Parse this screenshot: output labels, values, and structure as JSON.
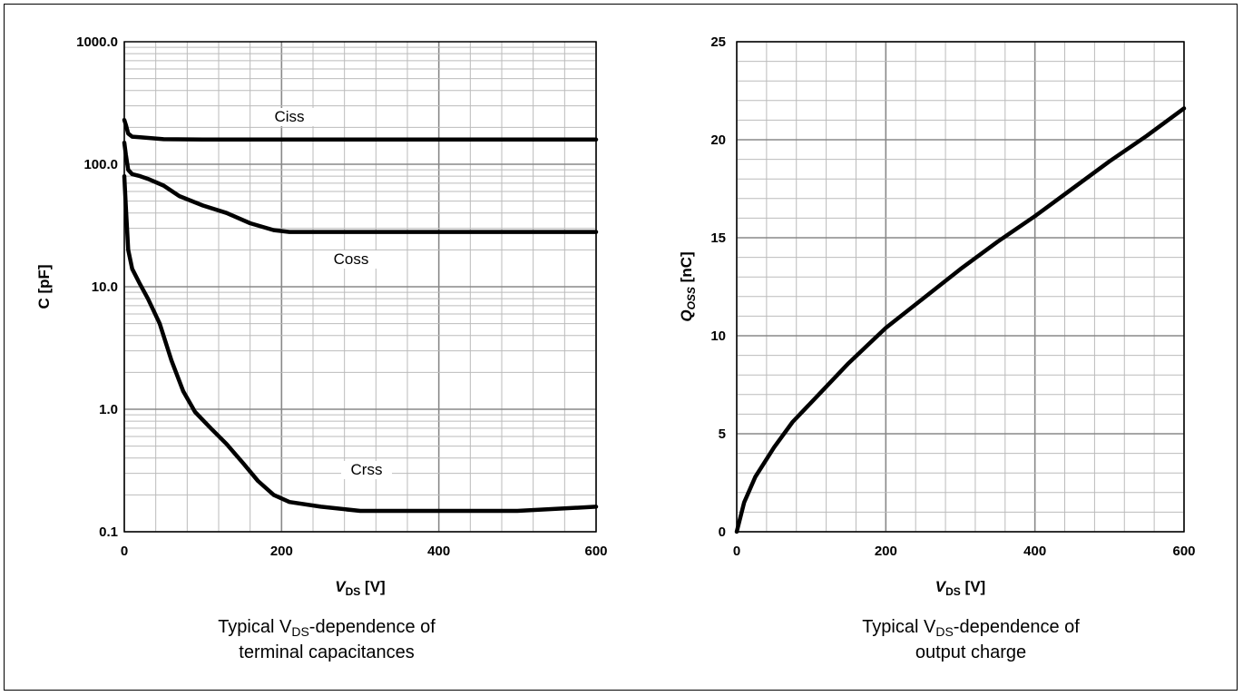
{
  "captions": {
    "left": {
      "prefix": "Typical V",
      "sub": "DS",
      "suffix": "-dependence of",
      "line2": "terminal capacitances"
    },
    "right": {
      "prefix": "Typical V",
      "sub": "DS",
      "suffix": "-dependence of",
      "line2": "output charge"
    }
  },
  "chart_data": [
    {
      "type": "line",
      "title": "",
      "xlabel": {
        "main": "V",
        "sub": "DS",
        "unit": " [V]"
      },
      "ylabel": "C [pF]",
      "xlim": [
        0,
        600
      ],
      "ylim": [
        0.1,
        1000
      ],
      "yscale": "log",
      "grid": true,
      "xticks": [
        0,
        200,
        400,
        600
      ],
      "xtick_labels": [
        "0",
        "200",
        "400",
        "600"
      ],
      "yticks": [
        0.1,
        1,
        10,
        100,
        1000
      ],
      "ytick_labels": [
        "0.1",
        "1.0",
        "10.0",
        "100.0",
        "1000.0"
      ],
      "series": [
        {
          "name": "Ciss",
          "x": [
            0,
            2,
            5,
            10,
            20,
            50,
            100,
            200,
            300,
            400,
            500,
            600
          ],
          "y": [
            230,
            210,
            178,
            168,
            166,
            160,
            159,
            159,
            159,
            159,
            159,
            159
          ]
        },
        {
          "name": "Coss",
          "x": [
            0,
            2,
            5,
            10,
            20,
            30,
            50,
            70,
            100,
            130,
            160,
            190,
            210,
            250,
            300,
            400,
            500,
            600
          ],
          "y": [
            150,
            120,
            90,
            83,
            80,
            76,
            67,
            55,
            46,
            40,
            33,
            29,
            28,
            28,
            28,
            28,
            28,
            28
          ]
        },
        {
          "name": "Crss",
          "x": [
            0,
            2,
            5,
            10,
            20,
            30,
            45,
            60,
            75,
            90,
            110,
            130,
            150,
            170,
            190,
            210,
            250,
            300,
            400,
            500,
            600
          ],
          "y": [
            80,
            45,
            20,
            14,
            10.5,
            8,
            5,
            2.5,
            1.4,
            0.95,
            0.7,
            0.52,
            0.37,
            0.26,
            0.2,
            0.175,
            0.16,
            0.148,
            0.148,
            0.148,
            0.16
          ]
        }
      ]
    },
    {
      "type": "line",
      "title": "",
      "xlabel": {
        "main": "V",
        "sub": "DS",
        "unit": " [V]"
      },
      "ylabel": {
        "main": "Q",
        "sub": "OSS",
        "unit": " [nC]"
      },
      "xlim": [
        0,
        600
      ],
      "ylim": [
        0,
        25
      ],
      "grid": true,
      "xticks": [
        0,
        200,
        400,
        600
      ],
      "xtick_labels": [
        "0",
        "200",
        "400",
        "600"
      ],
      "yticks": [
        0,
        5,
        10,
        15,
        20,
        25
      ],
      "ytick_labels": [
        "0",
        "5",
        "10",
        "15",
        "20",
        "25"
      ],
      "series": [
        {
          "name": "",
          "x": [
            0,
            10,
            25,
            50,
            75,
            100,
            150,
            200,
            250,
            300,
            350,
            400,
            450,
            500,
            550,
            600
          ],
          "y": [
            0,
            1.5,
            2.8,
            4.3,
            5.6,
            6.6,
            8.6,
            10.4,
            11.9,
            13.4,
            14.8,
            16.1,
            17.5,
            18.9,
            20.2,
            21.6
          ]
        }
      ]
    }
  ]
}
